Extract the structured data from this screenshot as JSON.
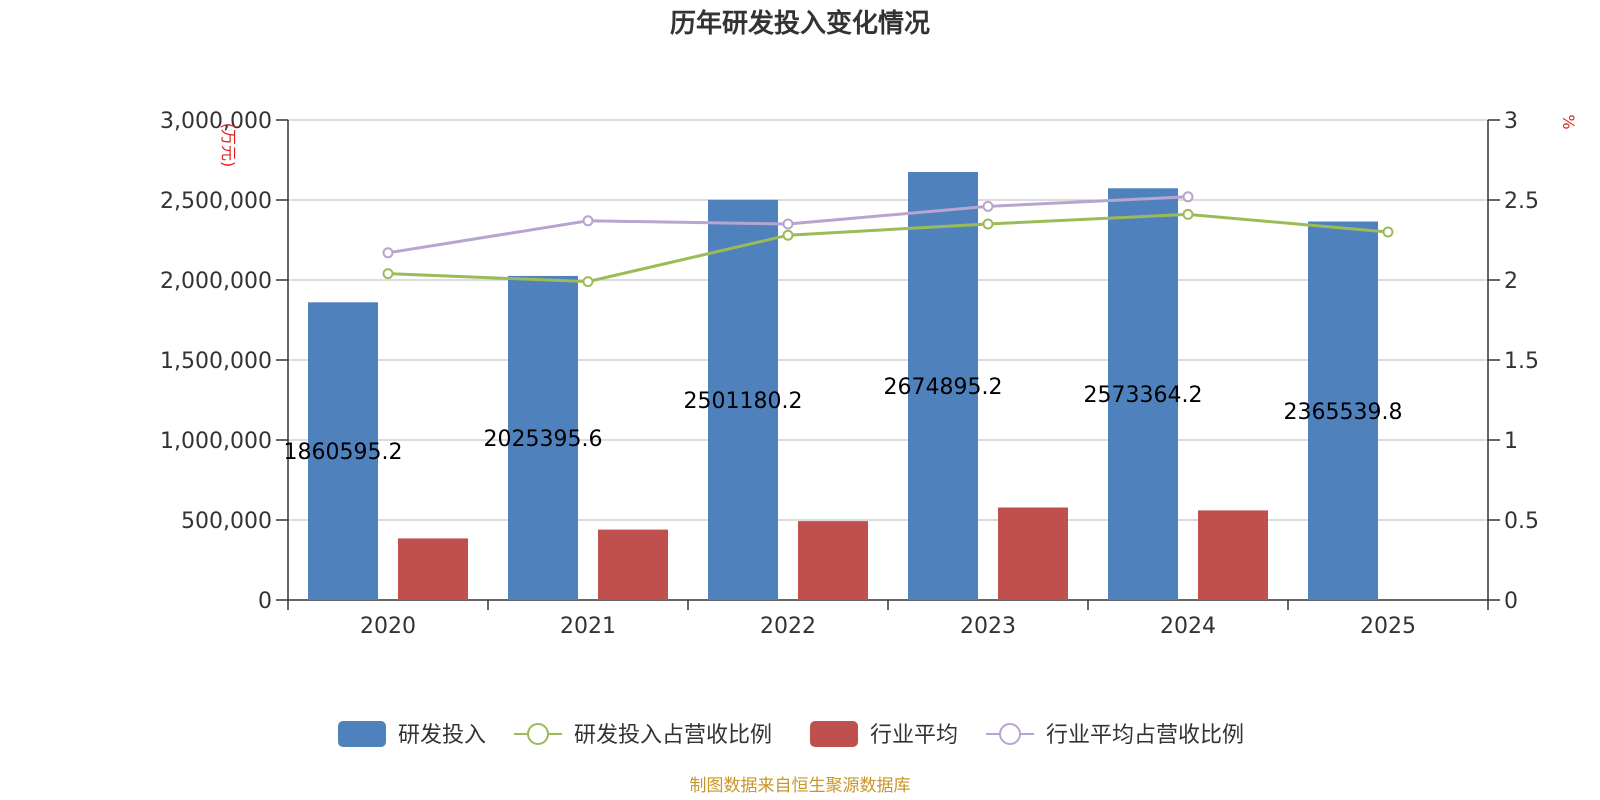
{
  "chart_data": {
    "type": "bar",
    "title": "历年研发投入变化情况",
    "categories": [
      "2020",
      "2021",
      "2022",
      "2023",
      "2024",
      "2025"
    ],
    "left_axis": {
      "label": "(万元)",
      "range": [
        0,
        3000000
      ],
      "ticks": [
        0,
        500000,
        1000000,
        1500000,
        2000000,
        2500000,
        3000000
      ],
      "tick_labels": [
        "0",
        "500,000",
        "1,000,000",
        "1,500,000",
        "2,000,000",
        "2,500,000",
        "3,000,000"
      ]
    },
    "right_axis": {
      "label": "%",
      "range": [
        0,
        3
      ],
      "ticks": [
        0,
        0.5,
        1,
        1.5,
        2,
        2.5,
        3
      ],
      "tick_labels": [
        "0",
        "0.5",
        "1",
        "1.5",
        "2",
        "2.5",
        "3"
      ]
    },
    "series": [
      {
        "name": "研发投入",
        "type": "bar",
        "axis": "left",
        "color": "#4f81bd",
        "values": [
          1860595.2,
          2025395.6,
          2501180.2,
          2674895.2,
          2573364.2,
          2365539.8
        ],
        "labels": [
          "1860595.2",
          "2025395.6",
          "2501180.2",
          "2674895.2",
          "2573364.2",
          "2365539.8"
        ]
      },
      {
        "name": "研发投入占营收比例",
        "type": "line",
        "axis": "right",
        "color": "#9bbb59",
        "values": [
          2.04,
          1.99,
          2.28,
          2.35,
          2.41,
          2.3
        ]
      },
      {
        "name": "行业平均",
        "type": "bar",
        "axis": "left",
        "color": "#c0504d",
        "values": [
          385000,
          440000,
          493000,
          578000,
          560000,
          null
        ]
      },
      {
        "name": "行业平均占营收比例",
        "type": "line",
        "axis": "right",
        "color": "#b7a5cf",
        "values": [
          2.17,
          2.37,
          2.35,
          2.46,
          2.52,
          null
        ]
      }
    ],
    "legend_position": "bottom",
    "grid": true
  },
  "footer": {
    "source": "制图数据来自恒生聚源数据库"
  }
}
